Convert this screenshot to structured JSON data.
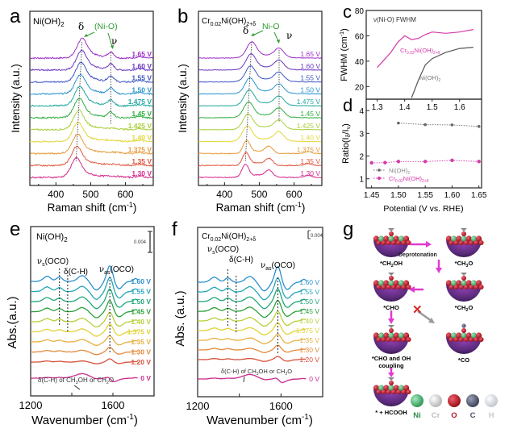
{
  "figure": {
    "panel_letters": {
      "a": "a",
      "b": "b",
      "c": "c",
      "d": "d",
      "e": "e",
      "f": "f",
      "g": "g"
    }
  },
  "chart_data": [
    {
      "panel": "a",
      "type": "line",
      "title": "Ni(OH)2",
      "title_main": "Ni(OH)",
      "title_sub": "2",
      "xlabel": "Raman shift (cm-1)",
      "xlabel_main": "Raman shift (cm",
      "xlabel_sup": "-1",
      "xlabel_end": ")",
      "ylabel": "Intensity (a.u.)",
      "xlim": [
        325,
        680
      ],
      "xticks": [
        400,
        500,
        600
      ],
      "tick_labels": [
        "400",
        "500",
        "600"
      ],
      "annotations": {
        "delta": "δ",
        "nio": "(Ni-O)",
        "nu": "ν"
      },
      "peaks": {
        "delta_high": 475,
        "delta_low": 458,
        "nu": 558
      },
      "series": [
        {
          "name": "1.65 V",
          "color": "#9b30c8",
          "nu_present": true
        },
        {
          "name": "1.60 V",
          "color": "#6a35c0",
          "nu_present": true
        },
        {
          "name": "1.55 V",
          "color": "#3f56c6",
          "nu_present": true
        },
        {
          "name": "1.50 V",
          "color": "#2a93cf",
          "nu_present": true
        },
        {
          "name": "1.475 V",
          "color": "#23a8a0",
          "nu_present": true
        },
        {
          "name": "1.45 V",
          "color": "#2fae3f",
          "nu_present": true
        },
        {
          "name": "1.425 V",
          "color": "#a8cf3a",
          "nu_present": false
        },
        {
          "name": "1.40 V",
          "color": "#e3d63a",
          "nu_present": false
        },
        {
          "name": "1.375 V",
          "color": "#e79a3a",
          "nu_present": false
        },
        {
          "name": "1.35 V",
          "color": "#e0553c",
          "nu_present": false
        },
        {
          "name": "1.30 V",
          "color": "#d42a8c",
          "nu_present": false
        }
      ]
    },
    {
      "panel": "b",
      "type": "line",
      "title": "Cr0.02Ni(OH)2+δ",
      "title_main1": "Cr",
      "title_sub1": "0.02",
      "title_main2": "Ni(OH)",
      "title_sub2": "2+δ",
      "xlabel": "Raman shift (cm-1)",
      "xlabel_main": "Raman shift (cm",
      "xlabel_sup": "-1",
      "xlabel_end": ")",
      "ylabel": "Intensity (a.u.)",
      "xlim": [
        325,
        680
      ],
      "xticks": [
        400,
        500,
        600
      ],
      "tick_labels": [
        "400",
        "500",
        "600"
      ],
      "annotations": {
        "delta": "δ",
        "nio": "Ni-O",
        "nu": "ν"
      },
      "peaks": {
        "delta_high": 478,
        "delta_low": 460,
        "nu": 557
      },
      "series": [
        {
          "name": "1.65 V",
          "color": "#9b30c8"
        },
        {
          "name": "1.60 V",
          "color": "#6a35c0"
        },
        {
          "name": "1.55 V",
          "color": "#3f56c6"
        },
        {
          "name": "1.50 V",
          "color": "#2a93cf"
        },
        {
          "name": "1.475 V",
          "color": "#23a8a0"
        },
        {
          "name": "1.45 V",
          "color": "#2fae3f"
        },
        {
          "name": "1.425 V",
          "color": "#a8cf3a"
        },
        {
          "name": "1.40 V",
          "color": "#e3d63a"
        },
        {
          "name": "1.375 V",
          "color": "#e79a3a"
        },
        {
          "name": "1.35 V",
          "color": "#e0553c"
        },
        {
          "name": "1.30 V",
          "color": "#d42a8c"
        }
      ]
    },
    {
      "panel": "c",
      "type": "line",
      "title": "ν(Ni-O) FWHM",
      "ylabel": "FWHM (cm-1)",
      "ylabel_main": "FWHM (cm",
      "ylabel_sup": "-1",
      "ylabel_end": ")",
      "ylim": [
        10,
        80
      ],
      "yticks": [
        20,
        40,
        60,
        80
      ],
      "ytick_labels": [
        "20",
        "40",
        "60",
        "80"
      ],
      "xlim": [
        1.26,
        1.68
      ],
      "xticks": [
        1.3,
        1.4,
        1.5,
        1.6
      ],
      "xtick_labels": [
        "1.3",
        "1.4",
        "1.5",
        "1.6"
      ],
      "series": [
        {
          "name": "Cr0.02Ni(OH)2+δ",
          "label_main": "Cr",
          "label_sub1": "0.02",
          "label_main2": "Ni(OH)",
          "label_sub2": "2+δ",
          "color": "#d43aa8",
          "x": [
            1.3,
            1.325,
            1.35,
            1.375,
            1.4,
            1.425,
            1.45,
            1.475,
            1.5,
            1.55,
            1.6,
            1.65
          ],
          "y": [
            35,
            41,
            47,
            55,
            60,
            57,
            58,
            61,
            63,
            62,
            63,
            65
          ]
        },
        {
          "name": "Ni(OH)2",
          "label_main": "Ni(OH)",
          "label_sub": "2",
          "color": "#555555",
          "x": [
            1.425,
            1.45,
            1.475,
            1.5,
            1.55,
            1.6,
            1.65
          ],
          "y": [
            11,
            25,
            37,
            42,
            47,
            50,
            51
          ]
        }
      ]
    },
    {
      "panel": "d",
      "type": "scatter",
      "ylabel": "Ratio(Iδ/Iν)",
      "ylabel_main": "Ratio(I",
      "ylabel_sub1": "δ",
      "ylabel_mid": "/I",
      "ylabel_sub2": "ν",
      "ylabel_end": ")",
      "xlabel": "Potential (V vs. RHE)",
      "xlim": [
        1.44,
        1.655
      ],
      "xticks": [
        1.45,
        1.5,
        1.55,
        1.6,
        1.65
      ],
      "xtick_labels": [
        "1.45",
        "1.50",
        "1.55",
        "1.60",
        "1.65"
      ],
      "ylim": [
        0.6,
        4.5
      ],
      "yticks": [
        1,
        2,
        3,
        4
      ],
      "ytick_labels": [
        "1",
        "2",
        "3",
        "4"
      ],
      "series": [
        {
          "name": "Ni(OH)2",
          "label_main": "Ni(OH)",
          "label_sub": "2",
          "color": "#666666",
          "x": [
            1.5,
            1.55,
            1.6,
            1.65
          ],
          "y": [
            3.45,
            3.38,
            3.37,
            3.3
          ]
        },
        {
          "name": "Cr0.02Ni(OH)2+δ",
          "label_main": "Cr",
          "label_sub1": "0.02",
          "label_main2": "Ni(OH)",
          "label_sub2": "2+δ",
          "color": "#d43aa8",
          "x": [
            1.45,
            1.475,
            1.5,
            1.55,
            1.6,
            1.65
          ],
          "y": [
            1.7,
            1.71,
            1.76,
            1.76,
            1.81,
            1.76
          ]
        }
      ],
      "legend_position": "bottom-left"
    },
    {
      "panel": "e",
      "type": "line",
      "title": "Ni(OH)2",
      "title_main": "Ni(OH)",
      "title_sub": "2",
      "xlabel": "Wavenumber (cm-1)",
      "xlabel_main": "Wavenumber (cm",
      "xlabel_sup": "-1",
      "xlabel_end": ")",
      "ylabel": "Abs.(a.u.)",
      "xlim": [
        1200,
        1800
      ],
      "xticks": [
        1200,
        1400,
        1600
      ],
      "tick_labels": [
        "1200",
        "",
        "1600"
      ],
      "scale_bar": "0.004",
      "annotations": {
        "vs_main": "ν",
        "vs_sub": "s",
        "vs_end": "(OCO)",
        "dch": "δ(C-H)",
        "vas_main": "ν",
        "vas_sub": "as",
        "vas_end": "(OCO)",
        "bottom": "δ(C-H) of CH3OH or CH2O",
        "bottom_p1": "δ(C-H) of CH",
        "bottom_s1": "3",
        "bottom_p2": "OH or CH",
        "bottom_s2": "2",
        "bottom_p3": "O"
      },
      "peaks": {
        "vs": 1340,
        "dch": 1380,
        "vas": 1585
      },
      "series": [
        {
          "name": "1.60 V",
          "color": "#2a8fcf"
        },
        {
          "name": "1.55 V",
          "color": "#26a5b8"
        },
        {
          "name": "1.50 V",
          "color": "#22a67a"
        },
        {
          "name": "1.45 V",
          "color": "#2ca03c"
        },
        {
          "name": "1.40 V",
          "color": "#b8cf3a"
        },
        {
          "name": "1.375 V",
          "color": "#e0d238"
        },
        {
          "name": "1.35 V",
          "color": "#e8b040"
        },
        {
          "name": "1.30 V",
          "color": "#e38a3c"
        },
        {
          "name": "1.20 V",
          "color": "#d8503c"
        },
        {
          "name": "0 V",
          "color": "#cc2a8e"
        }
      ]
    },
    {
      "panel": "f",
      "type": "line",
      "title": "Cr0.02Ni(OH)2+δ",
      "title_main1": "Cr",
      "title_sub1": "0.02",
      "title_main2": "Ni(OH)",
      "title_sub2": "2+δ",
      "xlabel": "Wavenumber (cm-1)",
      "xlabel_main": "Wavenumber (cm",
      "xlabel_sup": "-1",
      "xlabel_end": ")",
      "ylabel": "Abs. (a.u.)",
      "xlim": [
        1200,
        1800
      ],
      "xticks": [
        1200,
        1400,
        1600
      ],
      "tick_labels": [
        "1200",
        "",
        "1600"
      ],
      "scale_bar": "0.004",
      "annotations": {
        "vs_main": "ν",
        "vs_sub": "s",
        "vs_end": "(OCO)",
        "dch": "δ(C-H)",
        "vas_main": "ν",
        "vas_sub": "as",
        "vas_end": "(OCO)",
        "bottom": "δ(C-H) of CH3OH or CH2O",
        "bottom_p1": "δ(C-H) of CH",
        "bottom_s1": "3",
        "bottom_p2": "OH or CH",
        "bottom_s2": "2",
        "bottom_p3": "O"
      },
      "peaks": {
        "vs": 1345,
        "dch": 1385,
        "vas": 1585
      },
      "series": [
        {
          "name": "1.60 V",
          "color": "#2a8fcf"
        },
        {
          "name": "1.55 V",
          "color": "#26a5b8"
        },
        {
          "name": "1.50 V",
          "color": "#22a67a"
        },
        {
          "name": "1.45 V",
          "color": "#2ca03c"
        },
        {
          "name": "1.40 V",
          "color": "#b8cf3a"
        },
        {
          "name": "1.375 V",
          "color": "#e0d238"
        },
        {
          "name": "1.35 V",
          "color": "#e8b040"
        },
        {
          "name": "1.30 V",
          "color": "#e38a3c"
        },
        {
          "name": "1.20 V",
          "color": "#d8503c"
        },
        {
          "name": "0 V",
          "color": "#cc2a8e"
        }
      ]
    }
  ],
  "scheme": {
    "panel": "g",
    "states": [
      {
        "id": "ch2oh",
        "label_pre": "*CH",
        "label_sub": "2",
        "label_post": "OH",
        "adsorbate": "CH2OH"
      },
      {
        "id": "ch3o",
        "label_pre": "*CH",
        "label_sub": "3",
        "label_post": "O",
        "adsorbate": "CH3O"
      },
      {
        "id": "ch2o",
        "label_pre": "*CH",
        "label_sub": "2",
        "label_post": "O",
        "adsorbate": "CH2O"
      },
      {
        "id": "cho",
        "label_pre": "*CHO",
        "label_sub": "",
        "label_post": "",
        "adsorbate": "CHO"
      },
      {
        "id": "cho_oh",
        "label_pre": "*CHO and OH",
        "label_sub": "",
        "label_post": "",
        "label_line2": "coupling",
        "adsorbate": "CHO+OH"
      },
      {
        "id": "co",
        "label_pre": "*CO",
        "label_sub": "",
        "label_post": "",
        "adsorbate": "CO"
      },
      {
        "id": "hcooh",
        "label_pre": "* + HCOOH",
        "label_sub": "",
        "label_post": "",
        "adsorbate": "HCOOH"
      }
    ],
    "step_label": "Deprotonation",
    "blocked_mark": "✕",
    "arrow_color": "#e23ad0",
    "legend": [
      {
        "element": "Ni",
        "color": "#3aa25e",
        "text_color": "#2f8a4e"
      },
      {
        "element": "Cr",
        "color": "#cfcfcf",
        "text_color": "#c0c0c0"
      },
      {
        "element": "O",
        "color": "#b3151e",
        "text_color": "#a81c25"
      },
      {
        "element": "C",
        "color": "#555c72",
        "text_color": "#4c5366"
      },
      {
        "element": "H",
        "color": "#d8dde3",
        "text_color": "#c4c9cf"
      }
    ]
  }
}
